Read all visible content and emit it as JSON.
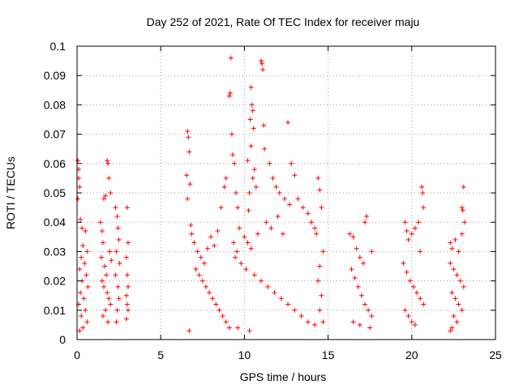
{
  "chart_data": {
    "type": "scatter",
    "title": "Day 252 of 2021, Rate Of TEC Index for receiver maju",
    "xlabel": "GPS time / hours",
    "ylabel": "ROTI / TECUs",
    "xlim": [
      0,
      25
    ],
    "ylim": [
      0,
      0.1
    ],
    "xticks": [
      "0",
      "5",
      "10",
      "15",
      "20",
      "25"
    ],
    "yticks": [
      "0",
      "0.01",
      "0.02",
      "0.03",
      "0.04",
      "0.05",
      "0.06",
      "0.07",
      "0.08",
      "0.09",
      "0.1"
    ],
    "grid": true,
    "marker": "+",
    "marker_color": "#ff0000",
    "series": [
      {
        "name": "ROTI",
        "points": [
          [
            0.05,
            0.061
          ],
          [
            0.1,
            0.058
          ],
          [
            0.1,
            0.055
          ],
          [
            0.15,
            0.052
          ],
          [
            0.05,
            0.048
          ],
          [
            0.2,
            0.041
          ],
          [
            0.3,
            0.038
          ],
          [
            0.5,
            0.037
          ],
          [
            0.35,
            0.032
          ],
          [
            0.6,
            0.03
          ],
          [
            0.25,
            0.028
          ],
          [
            0.45,
            0.026
          ],
          [
            0.15,
            0.024
          ],
          [
            0.55,
            0.022
          ],
          [
            0.3,
            0.02
          ],
          [
            0.65,
            0.018
          ],
          [
            0.2,
            0.016
          ],
          [
            0.4,
            0.014
          ],
          [
            0.1,
            0.012
          ],
          [
            0.5,
            0.01
          ],
          [
            0.25,
            0.008
          ],
          [
            0.6,
            0.006
          ],
          [
            0.35,
            0.004
          ],
          [
            0.15,
            0.003
          ],
          [
            1.4,
            0.04
          ],
          [
            1.5,
            0.037
          ],
          [
            1.6,
            0.048
          ],
          [
            1.7,
            0.049
          ],
          [
            1.55,
            0.033
          ],
          [
            1.45,
            0.028
          ],
          [
            1.8,
            0.061
          ],
          [
            1.85,
            0.06
          ],
          [
            1.9,
            0.055
          ],
          [
            2.0,
            0.05
          ],
          [
            1.65,
            0.025
          ],
          [
            1.75,
            0.022
          ],
          [
            1.95,
            0.03
          ],
          [
            2.05,
            0.027
          ],
          [
            1.5,
            0.02
          ],
          [
            1.6,
            0.018
          ],
          [
            1.8,
            0.016
          ],
          [
            1.9,
            0.014
          ],
          [
            2.0,
            0.012
          ],
          [
            1.7,
            0.01
          ],
          [
            1.55,
            0.008
          ],
          [
            1.85,
            0.006
          ],
          [
            2.3,
            0.045
          ],
          [
            2.4,
            0.042
          ],
          [
            2.45,
            0.038
          ],
          [
            2.5,
            0.034
          ],
          [
            2.35,
            0.03
          ],
          [
            2.55,
            0.026
          ],
          [
            2.3,
            0.022
          ],
          [
            2.45,
            0.018
          ],
          [
            2.5,
            0.014
          ],
          [
            2.4,
            0.01
          ],
          [
            2.35,
            0.006
          ],
          [
            3.0,
            0.045
          ],
          [
            3.05,
            0.033
          ],
          [
            2.95,
            0.028
          ],
          [
            3.0,
            0.022
          ],
          [
            3.05,
            0.018
          ],
          [
            2.95,
            0.015
          ],
          [
            3.0,
            0.012
          ],
          [
            3.05,
            0.01
          ],
          [
            2.95,
            0.007
          ],
          [
            6.6,
            0.071
          ],
          [
            6.65,
            0.069
          ],
          [
            6.7,
            0.064
          ],
          [
            6.55,
            0.056
          ],
          [
            6.75,
            0.053
          ],
          [
            6.6,
            0.048
          ],
          [
            6.8,
            0.039
          ],
          [
            6.85,
            0.036
          ],
          [
            7.0,
            0.033
          ],
          [
            7.2,
            0.03
          ],
          [
            7.4,
            0.028
          ],
          [
            7.6,
            0.026
          ],
          [
            7.8,
            0.031
          ],
          [
            8.0,
            0.035
          ],
          [
            8.2,
            0.032
          ],
          [
            8.4,
            0.037
          ],
          [
            8.6,
            0.045
          ],
          [
            8.8,
            0.052
          ],
          [
            8.9,
            0.055
          ],
          [
            7.1,
            0.024
          ],
          [
            7.3,
            0.022
          ],
          [
            7.5,
            0.02
          ],
          [
            7.7,
            0.018
          ],
          [
            7.9,
            0.016
          ],
          [
            8.1,
            0.014
          ],
          [
            8.3,
            0.012
          ],
          [
            8.5,
            0.01
          ],
          [
            8.7,
            0.008
          ],
          [
            8.9,
            0.006
          ],
          [
            9.1,
            0.004
          ],
          [
            6.7,
            0.003
          ],
          [
            9.2,
            0.096
          ],
          [
            9.15,
            0.084
          ],
          [
            9.1,
            0.083
          ],
          [
            9.25,
            0.07
          ],
          [
            9.3,
            0.063
          ],
          [
            9.4,
            0.06
          ],
          [
            9.5,
            0.05
          ],
          [
            9.6,
            0.045
          ],
          [
            9.7,
            0.038
          ],
          [
            9.35,
            0.033
          ],
          [
            9.55,
            0.03
          ],
          [
            9.45,
            0.028
          ],
          [
            10.4,
            0.086
          ],
          [
            10.45,
            0.08
          ],
          [
            10.5,
            0.078
          ],
          [
            10.35,
            0.075
          ],
          [
            10.55,
            0.072
          ],
          [
            10.4,
            0.066
          ],
          [
            10.6,
            0.058
          ],
          [
            10.5,
            0.055
          ],
          [
            10.2,
            0.061
          ],
          [
            10.3,
            0.05
          ],
          [
            10.7,
            0.052
          ],
          [
            10.25,
            0.044
          ],
          [
            11.0,
            0.095
          ],
          [
            11.05,
            0.094
          ],
          [
            11.1,
            0.092
          ],
          [
            11.15,
            0.073
          ],
          [
            11.2,
            0.065
          ],
          [
            11.5,
            0.06
          ],
          [
            11.7,
            0.055
          ],
          [
            11.9,
            0.052
          ],
          [
            12.1,
            0.05
          ],
          [
            12.4,
            0.048
          ],
          [
            12.6,
            0.074
          ],
          [
            12.8,
            0.06
          ],
          [
            13.0,
            0.056
          ],
          [
            10.0,
            0.035
          ],
          [
            10.2,
            0.033
          ],
          [
            10.4,
            0.031
          ],
          [
            10.8,
            0.036
          ],
          [
            11.3,
            0.04
          ],
          [
            11.6,
            0.038
          ],
          [
            12.0,
            0.042
          ],
          [
            12.3,
            0.036
          ],
          [
            12.7,
            0.046
          ],
          [
            13.2,
            0.048
          ],
          [
            13.5,
            0.045
          ],
          [
            13.8,
            0.043
          ],
          [
            14.0,
            0.04
          ],
          [
            14.2,
            0.038
          ],
          [
            9.8,
            0.026
          ],
          [
            10.1,
            0.024
          ],
          [
            10.6,
            0.022
          ],
          [
            11.0,
            0.02
          ],
          [
            11.4,
            0.018
          ],
          [
            11.8,
            0.016
          ],
          [
            12.2,
            0.014
          ],
          [
            12.6,
            0.012
          ],
          [
            13.0,
            0.01
          ],
          [
            13.4,
            0.008
          ],
          [
            13.8,
            0.006
          ],
          [
            14.2,
            0.005
          ],
          [
            9.6,
            0.004
          ],
          [
            10.3,
            0.003
          ],
          [
            14.4,
            0.055
          ],
          [
            14.5,
            0.051
          ],
          [
            14.6,
            0.045
          ],
          [
            14.3,
            0.036
          ],
          [
            14.7,
            0.03
          ],
          [
            14.5,
            0.025
          ],
          [
            14.4,
            0.02
          ],
          [
            14.6,
            0.015
          ],
          [
            14.5,
            0.01
          ],
          [
            14.7,
            0.006
          ],
          [
            16.3,
            0.036
          ],
          [
            16.5,
            0.035
          ],
          [
            16.7,
            0.031
          ],
          [
            16.9,
            0.028
          ],
          [
            17.1,
            0.026
          ],
          [
            17.2,
            0.04
          ],
          [
            17.3,
            0.042
          ],
          [
            17.6,
            0.03
          ],
          [
            16.4,
            0.024
          ],
          [
            16.6,
            0.021
          ],
          [
            16.8,
            0.018
          ],
          [
            17.0,
            0.015
          ],
          [
            17.2,
            0.012
          ],
          [
            17.4,
            0.01
          ],
          [
            17.6,
            0.008
          ],
          [
            16.5,
            0.006
          ],
          [
            16.9,
            0.005
          ],
          [
            17.5,
            0.004
          ],
          [
            19.6,
            0.04
          ],
          [
            19.7,
            0.037
          ],
          [
            19.8,
            0.034
          ],
          [
            20.0,
            0.036
          ],
          [
            20.2,
            0.038
          ],
          [
            20.4,
            0.04
          ],
          [
            20.6,
            0.052
          ],
          [
            20.65,
            0.05
          ],
          [
            20.7,
            0.045
          ],
          [
            20.5,
            0.03
          ],
          [
            19.5,
            0.026
          ],
          [
            19.7,
            0.023
          ],
          [
            19.9,
            0.02
          ],
          [
            20.1,
            0.018
          ],
          [
            20.3,
            0.016
          ],
          [
            20.5,
            0.014
          ],
          [
            20.7,
            0.012
          ],
          [
            19.6,
            0.01
          ],
          [
            19.8,
            0.008
          ],
          [
            20.0,
            0.006
          ],
          [
            20.2,
            0.005
          ],
          [
            22.3,
            0.033
          ],
          [
            22.4,
            0.031
          ],
          [
            22.6,
            0.034
          ],
          [
            22.8,
            0.03
          ],
          [
            23.0,
            0.045
          ],
          [
            23.05,
            0.044
          ],
          [
            23.1,
            0.052
          ],
          [
            23.15,
            0.04
          ],
          [
            23.0,
            0.036
          ],
          [
            22.3,
            0.026
          ],
          [
            22.5,
            0.024
          ],
          [
            22.7,
            0.022
          ],
          [
            22.9,
            0.02
          ],
          [
            23.1,
            0.018
          ],
          [
            22.4,
            0.016
          ],
          [
            22.6,
            0.014
          ],
          [
            22.8,
            0.012
          ],
          [
            23.0,
            0.01
          ],
          [
            22.5,
            0.008
          ],
          [
            22.7,
            0.006
          ],
          [
            22.4,
            0.004
          ],
          [
            22.3,
            0.003
          ]
        ]
      }
    ]
  }
}
